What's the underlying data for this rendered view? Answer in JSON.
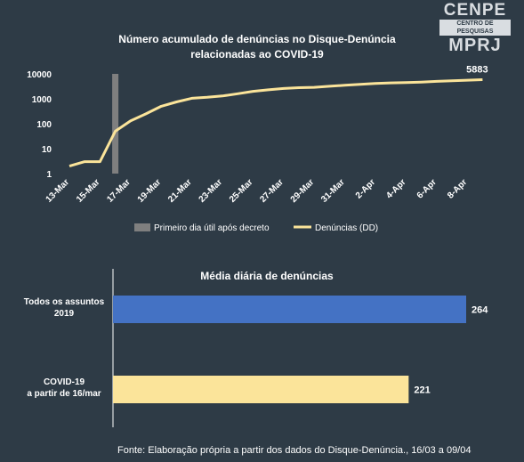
{
  "logo": {
    "line1": "CENPE",
    "line2": "CENTRO DE PESQUISAS",
    "line3": "MPRJ"
  },
  "colors": {
    "background": "#2e3b46",
    "line": "#fbe49a",
    "marker_bar": "#7f7f7f",
    "bar_2019": "#4472c4",
    "bar_covid": "#fbe49a"
  },
  "chart_data": [
    {
      "type": "line",
      "title": [
        "Número acumulado de denúncias no Disque-Denúncia",
        "relacionadas ao COVID-19"
      ],
      "y_scale": "log",
      "ylim": [
        1,
        10000
      ],
      "y_ticks": [
        "1",
        "10",
        "100",
        "1000",
        "10000"
      ],
      "x": [
        "13-Mar",
        "14-Mar",
        "15-Mar",
        "16-Mar",
        "17-Mar",
        "18-Mar",
        "19-Mar",
        "20-Mar",
        "21-Mar",
        "22-Mar",
        "23-Mar",
        "24-Mar",
        "25-Mar",
        "26-Mar",
        "27-Mar",
        "28-Mar",
        "29-Mar",
        "30-Mar",
        "31-Mar",
        "1-Apr",
        "2-Apr",
        "3-Apr",
        "4-Apr",
        "5-Apr",
        "6-Apr",
        "7-Apr",
        "8-Apr",
        "9-Apr"
      ],
      "x_tick_labels": [
        "13-Mar",
        "15-Mar",
        "17-Mar",
        "19-Mar",
        "21-Mar",
        "23-Mar",
        "25-Mar",
        "27-Mar",
        "29-Mar",
        "31-Mar",
        "2-Apr",
        "4-Apr",
        "6-Apr",
        "8-Apr"
      ],
      "series": [
        {
          "name": "Denúncias (DD)",
          "values": [
            2,
            3,
            3,
            50,
            130,
            250,
            500,
            750,
            1050,
            1150,
            1300,
            1600,
            2000,
            2300,
            2600,
            2800,
            2900,
            3200,
            3500,
            3800,
            4100,
            4350,
            4500,
            4700,
            5000,
            5300,
            5600,
            5883
          ]
        },
        {
          "name": "Primeiro dia útil após decreto",
          "type": "bar",
          "x": "16-Mar",
          "value": 10000
        }
      ],
      "data_labels": [
        {
          "x": "9-Apr",
          "text": "5883"
        }
      ],
      "legend": {
        "position": "bottom",
        "items": [
          "Primeiro dia útil após decreto",
          "Denúncias (DD)"
        ]
      }
    },
    {
      "type": "bar",
      "orientation": "horizontal",
      "title": "Média diária de denúncias",
      "categories": [
        [
          "Todos os assuntos",
          "2019"
        ],
        [
          "COVID-19",
          "a partir de 16/mar"
        ]
      ],
      "values": [
        264,
        221
      ],
      "value_labels": [
        "264",
        "221"
      ]
    }
  ],
  "source": "Fonte: Elaboração própria a partir dos dados do Disque-Denúncia., 16/03 a 09/04"
}
